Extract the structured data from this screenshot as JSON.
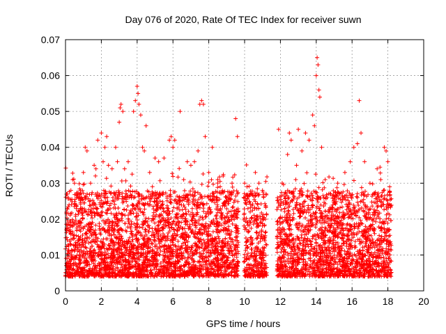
{
  "chart_data": {
    "type": "scatter",
    "title": "Day 076 of 2020, Rate Of TEC Index for receiver suwn",
    "xlabel": "GPS time / hours",
    "ylabel": "ROTI / TECUs",
    "xlim": [
      0,
      20
    ],
    "ylim": [
      0,
      0.07
    ],
    "grid": true,
    "x_ticks": [
      0,
      2,
      4,
      6,
      8,
      10,
      12,
      14,
      16,
      18,
      20
    ],
    "y_ticks": [
      0,
      0.01,
      0.02,
      0.03,
      0.04,
      0.05,
      0.06,
      0.07
    ],
    "x_tick_labels": [
      "0",
      "2",
      "4",
      "6",
      "8",
      "10",
      "12",
      "14",
      "16",
      "18",
      "20"
    ],
    "y_tick_labels": [
      "0",
      "0.01",
      "0.02",
      "0.03",
      "0.04",
      "0.05",
      "0.06",
      "0.07"
    ],
    "marker": "+",
    "series_color": "#ff0000",
    "series": [
      {
        "name": "ROTI",
        "description": "dense scatter, baseline 0.005-0.025 TECU with spikes",
        "points": [
          [
            0.1,
            0.01
          ],
          [
            0.2,
            0.024
          ],
          [
            0.3,
            0.028
          ],
          [
            0.4,
            0.031
          ],
          [
            0.5,
            0.03
          ],
          [
            0.7,
            0.018
          ],
          [
            0.9,
            0.026
          ],
          [
            1.0,
            0.033
          ],
          [
            1.1,
            0.04
          ],
          [
            1.2,
            0.039
          ],
          [
            1.4,
            0.03
          ],
          [
            1.6,
            0.035
          ],
          [
            1.7,
            0.034
          ],
          [
            1.8,
            0.042
          ],
          [
            2.0,
            0.044
          ],
          [
            2.1,
            0.036
          ],
          [
            2.2,
            0.04
          ],
          [
            2.3,
            0.043
          ],
          [
            2.4,
            0.035
          ],
          [
            2.6,
            0.034
          ],
          [
            2.8,
            0.04
          ],
          [
            2.9,
            0.036
          ],
          [
            3.0,
            0.047
          ],
          [
            3.05,
            0.051
          ],
          [
            3.1,
            0.052
          ],
          [
            3.2,
            0.05
          ],
          [
            3.3,
            0.034
          ],
          [
            3.5,
            0.036
          ],
          [
            3.8,
            0.05
          ],
          [
            3.9,
            0.053
          ],
          [
            4.0,
            0.057
          ],
          [
            4.05,
            0.055
          ],
          [
            4.1,
            0.052
          ],
          [
            4.2,
            0.049
          ],
          [
            4.3,
            0.04
          ],
          [
            4.4,
            0.039
          ],
          [
            4.5,
            0.046
          ],
          [
            4.7,
            0.033
          ],
          [
            5.0,
            0.037
          ],
          [
            5.2,
            0.036
          ],
          [
            5.5,
            0.037
          ],
          [
            5.8,
            0.042
          ],
          [
            5.9,
            0.043
          ],
          [
            6.0,
            0.04
          ],
          [
            6.1,
            0.042
          ],
          [
            6.4,
            0.05
          ],
          [
            6.6,
            0.031
          ],
          [
            6.8,
            0.036
          ],
          [
            7.0,
            0.035
          ],
          [
            7.2,
            0.036
          ],
          [
            7.4,
            0.039
          ],
          [
            7.5,
            0.052
          ],
          [
            7.6,
            0.053
          ],
          [
            7.7,
            0.052
          ],
          [
            7.8,
            0.043
          ],
          [
            8.0,
            0.033
          ],
          [
            8.2,
            0.04
          ],
          [
            8.5,
            0.031
          ],
          [
            8.8,
            0.032
          ],
          [
            9.0,
            0.025
          ],
          [
            9.3,
            0.03
          ],
          [
            9.5,
            0.048
          ],
          [
            9.6,
            0.043
          ],
          [
            10.0,
            0.03
          ],
          [
            10.4,
            0.027
          ],
          [
            10.6,
            0.033
          ],
          [
            10.8,
            0.03
          ],
          [
            11.0,
            0.028
          ],
          [
            11.2,
            0.027
          ],
          [
            11.9,
            0.045
          ],
          [
            12.1,
            0.03
          ],
          [
            12.4,
            0.038
          ],
          [
            12.5,
            0.044
          ],
          [
            12.6,
            0.042
          ],
          [
            12.9,
            0.035
          ],
          [
            13.0,
            0.045
          ],
          [
            13.2,
            0.039
          ],
          [
            13.4,
            0.044
          ],
          [
            13.6,
            0.042
          ],
          [
            13.8,
            0.049
          ],
          [
            13.9,
            0.046
          ],
          [
            14.0,
            0.06
          ],
          [
            14.05,
            0.065
          ],
          [
            14.1,
            0.063
          ],
          [
            14.15,
            0.056
          ],
          [
            14.2,
            0.054
          ],
          [
            14.3,
            0.04
          ],
          [
            14.5,
            0.031
          ],
          [
            14.8,
            0.027
          ],
          [
            15.2,
            0.03
          ],
          [
            15.6,
            0.033
          ],
          [
            15.9,
            0.036
          ],
          [
            16.1,
            0.04
          ],
          [
            16.3,
            0.041
          ],
          [
            16.4,
            0.053
          ],
          [
            16.5,
            0.044
          ],
          [
            16.7,
            0.036
          ],
          [
            17.0,
            0.03
          ],
          [
            17.4,
            0.034
          ],
          [
            17.6,
            0.031
          ],
          [
            17.8,
            0.04
          ],
          [
            17.9,
            0.039
          ],
          [
            18.0,
            0.036
          ],
          [
            18.1,
            0.029
          ]
        ]
      }
    ]
  }
}
